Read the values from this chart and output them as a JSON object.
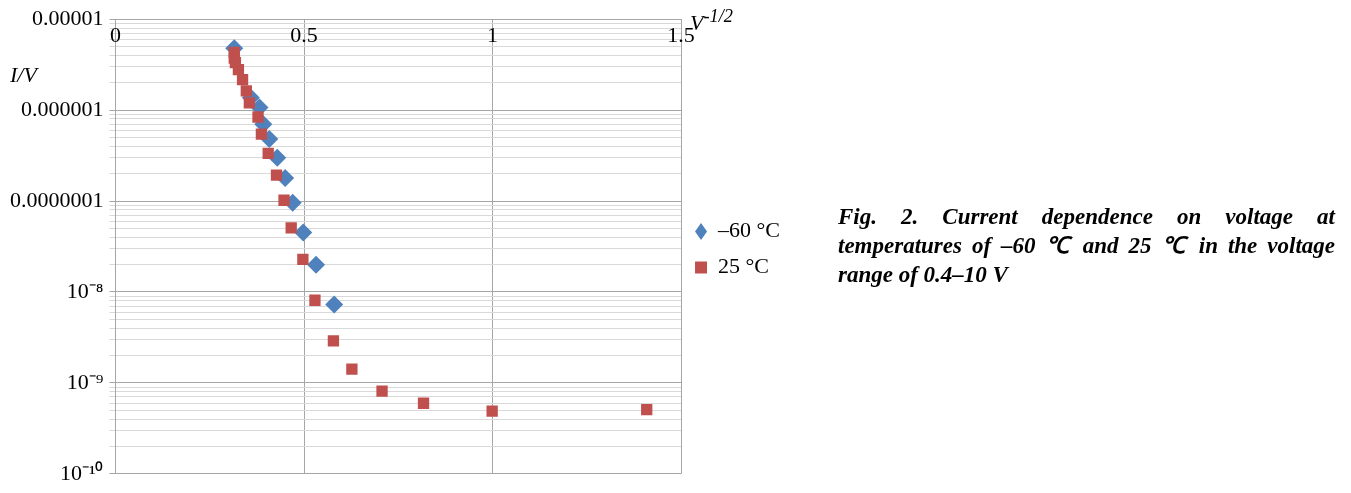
{
  "chart_data": {
    "type": "scatter",
    "title": "Fig. 2. Current dependence on voltage at temperatures of –60 ℃ and 25 ℃ in the voltage range of 0.4–10 V",
    "xlabel": "V$^{-1/2}$",
    "ylabel": "I/V",
    "log": true,
    "grid": true,
    "legend": "right",
    "xlim": [
      0,
      1.5
    ],
    "xticks": [
      0,
      0.5,
      1,
      1.5
    ],
    "ylim": [
      1e-10,
      1e-05
    ],
    "yticks": [
      {
        "value": 1e-10,
        "label": "10⁻¹⁰"
      },
      {
        "value": 2e-10,
        "label": null
      },
      {
        "value": 3e-10,
        "label": null
      },
      {
        "value": 4e-10,
        "label": null
      },
      {
        "value": 5e-10,
        "label": null
      },
      {
        "value": 6e-10,
        "label": null
      },
      {
        "value": 7e-10,
        "label": null
      },
      {
        "value": 8e-10,
        "label": null
      },
      {
        "value": 9e-10,
        "label": null
      },
      {
        "value": 1e-09,
        "label": "10⁻⁹"
      },
      {
        "value": 2e-09,
        "label": null
      },
      {
        "value": 3e-09,
        "label": null
      },
      {
        "value": 4e-09,
        "label": null
      },
      {
        "value": 5e-09,
        "label": null
      },
      {
        "value": 6e-09,
        "label": null
      },
      {
        "value": 7e-09,
        "label": null
      },
      {
        "value": 8e-09,
        "label": null
      },
      {
        "value": 9e-09,
        "label": null
      },
      {
        "value": 1e-08,
        "label": "10⁻⁸"
      },
      {
        "value": 2e-08,
        "label": null
      },
      {
        "value": 3e-08,
        "label": null
      },
      {
        "value": 4e-08,
        "label": null
      },
      {
        "value": 5e-08,
        "label": null
      },
      {
        "value": 6e-08,
        "label": null
      },
      {
        "value": 7e-08,
        "label": null
      },
      {
        "value": 8e-08,
        "label": null
      },
      {
        "value": 9e-08,
        "label": null
      },
      {
        "value": 1e-07,
        "label": "0.0000001"
      },
      {
        "value": 2e-07,
        "label": null
      },
      {
        "value": 3e-07,
        "label": null
      },
      {
        "value": 4e-07,
        "label": null
      },
      {
        "value": 5e-07,
        "label": null
      },
      {
        "value": 6e-07,
        "label": null
      },
      {
        "value": 7e-07,
        "label": null
      },
      {
        "value": 8e-07,
        "label": null
      },
      {
        "value": 9e-07,
        "label": null
      },
      {
        "value": 1e-06,
        "label": "0.000001"
      },
      {
        "value": 2e-06,
        "label": null
      },
      {
        "value": 3e-06,
        "label": null
      },
      {
        "value": 4e-06,
        "label": null
      },
      {
        "value": 5e-06,
        "label": null
      },
      {
        "value": 6e-06,
        "label": null
      },
      {
        "value": 7e-06,
        "label": null
      },
      {
        "value": 8e-06,
        "label": null
      },
      {
        "value": 9e-06,
        "label": null
      },
      {
        "value": 1e-05,
        "label": "0.00001"
      }
    ],
    "series": [
      {
        "name": "–60 °C",
        "color": "#4f81bd",
        "marker": "diamond",
        "x": [
          0.315,
          0.359,
          0.382,
          0.392,
          0.408,
          0.429,
          0.45,
          0.47,
          0.498,
          0.532,
          0.58
        ],
        "values": [
          4.8e-06,
          1.37e-06,
          1.07e-06,
          7e-07,
          4.8e-07,
          2.99e-07,
          1.79e-07,
          9.6e-08,
          4.5e-08,
          1.99e-08,
          7.3e-09
        ]
      },
      {
        "name": "25 °C",
        "color": "#c0504d",
        "marker": "square",
        "x": [
          0.315,
          0.315,
          0.318,
          0.326,
          0.337,
          0.347,
          0.355,
          0.378,
          0.387,
          0.405,
          0.427,
          0.447,
          0.466,
          0.497,
          0.529,
          0.578,
          0.627,
          0.707,
          0.817,
          0.999,
          1.409
        ],
        "values": [
          4.31e-06,
          3.74e-06,
          3.33e-06,
          2.79e-06,
          2.16e-06,
          1.63e-06,
          1.2e-06,
          8.4e-07,
          5.45e-07,
          3.35e-07,
          1.93e-07,
          1.02e-07,
          5.07e-08,
          2.28e-08,
          8.1e-09,
          2.9e-09,
          1.42e-09,
          8.1e-10,
          5.97e-10,
          4.9e-10,
          5.07e-10
        ]
      }
    ]
  }
}
